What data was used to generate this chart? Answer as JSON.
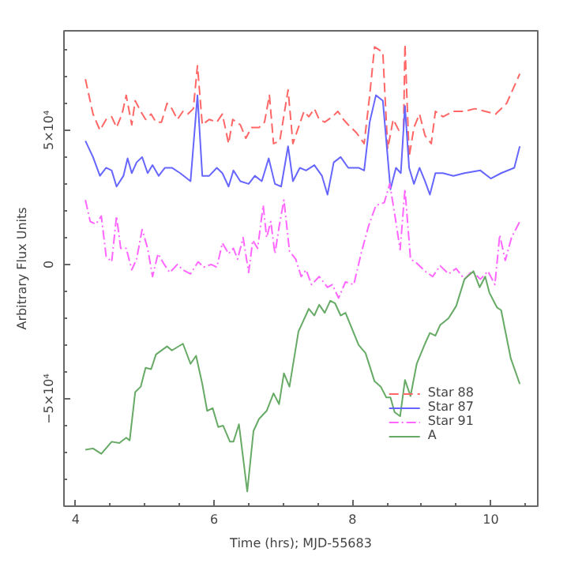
{
  "chart_data": {
    "type": "line",
    "xlabel": "Time (hrs); MJD-55683",
    "ylabel": "Arbitrary Flux Units",
    "xlim": [
      3.83,
      10.68
    ],
    "ylim": [
      -90000,
      87000
    ],
    "xticks": [
      4,
      6,
      8,
      10
    ],
    "yticks": [
      {
        "value": -50000,
        "label": "−5×10⁴"
      },
      0,
      {
        "value": 50000,
        "label": "5×10⁴"
      }
    ],
    "grid": false,
    "legend": "bottom right",
    "marker": "none",
    "series": [
      {
        "name": "Star 88",
        "color": "#ff6666",
        "line_style": "dashed",
        "x": [
          4.14,
          4.25,
          4.35,
          4.44,
          4.52,
          4.59,
          4.67,
          4.73,
          4.81,
          4.86,
          4.94,
          5.01,
          5.09,
          5.16,
          5.24,
          5.32,
          5.39,
          5.47,
          5.55,
          5.62,
          5.7,
          5.76,
          5.83,
          5.93,
          6.04,
          6.12,
          6.21,
          6.27,
          6.38,
          6.46,
          6.54,
          6.65,
          6.73,
          6.8,
          6.86,
          6.95,
          7.07,
          7.14,
          7.22,
          7.3,
          7.37,
          7.45,
          7.52,
          7.6,
          7.71,
          7.79,
          7.87,
          7.94,
          8.06,
          8.17,
          8.25,
          8.32,
          8.44,
          8.51,
          8.59,
          8.67,
          8.74,
          8.76,
          8.82,
          8.89,
          8.97,
          9.05,
          9.14,
          9.2,
          9.31,
          9.46,
          9.62,
          9.77,
          9.92,
          10.07,
          10.23,
          10.42
        ],
        "values": [
          69000,
          56000,
          50000,
          54000,
          55000,
          51000,
          56000,
          63000,
          52000,
          61000,
          57000,
          54000,
          56000,
          53000,
          53000,
          60000,
          58000,
          54000,
          57000,
          56000,
          58000,
          74000,
          52000,
          54000,
          53000,
          56000,
          45000,
          54000,
          52000,
          47000,
          51000,
          51000,
          53000,
          63000,
          45000,
          46000,
          65000,
          45000,
          51000,
          57000,
          55000,
          58000,
          54000,
          53000,
          55000,
          57000,
          54000,
          52000,
          49000,
          45000,
          63000,
          81000,
          79000,
          43000,
          54000,
          50000,
          51000,
          82000,
          40000,
          51000,
          56000,
          48000,
          45000,
          57000,
          55000,
          57000,
          57000,
          58000,
          57000,
          56000,
          60000,
          71000
        ]
      },
      {
        "name": "Star 87",
        "color": "#6666ff",
        "line_style": "solid",
        "x": [
          4.14,
          4.25,
          4.35,
          4.44,
          4.52,
          4.59,
          4.69,
          4.75,
          4.81,
          4.88,
          4.96,
          5.04,
          5.11,
          5.2,
          5.29,
          5.39,
          5.51,
          5.66,
          5.76,
          5.83,
          5.93,
          6.04,
          6.12,
          6.21,
          6.28,
          6.38,
          6.5,
          6.59,
          6.69,
          6.79,
          6.88,
          6.97,
          7.07,
          7.14,
          7.24,
          7.33,
          7.45,
          7.56,
          7.64,
          7.73,
          7.83,
          7.94,
          8.09,
          8.17,
          8.25,
          8.34,
          8.44,
          8.51,
          8.55,
          8.63,
          8.7,
          8.76,
          8.82,
          8.89,
          8.97,
          9.05,
          9.12,
          9.2,
          9.31,
          9.46,
          9.62,
          9.85,
          10.0,
          10.15,
          10.34,
          10.42
        ],
        "values": [
          46000,
          40000,
          33000,
          36000,
          35000,
          29000,
          33000,
          39500,
          34000,
          38000,
          40000,
          34000,
          37000,
          33000,
          36000,
          36000,
          34000,
          31000,
          63000,
          33000,
          33000,
          36000,
          34000,
          29000,
          35000,
          31000,
          30000,
          33000,
          31000,
          39500,
          30000,
          29000,
          44000,
          31000,
          36000,
          35000,
          37000,
          33000,
          26000,
          38000,
          40000,
          36000,
          36000,
          35000,
          53000,
          63000,
          61000,
          40000,
          28000,
          36000,
          34000,
          59000,
          36000,
          30000,
          36000,
          31000,
          26000,
          34000,
          34000,
          33000,
          34000,
          35000,
          32000,
          34000,
          36000,
          44000
        ]
      },
      {
        "name": "Star 91",
        "color": "#ff66ff",
        "line_style": "dotted",
        "x": [
          4.14,
          4.21,
          4.29,
          4.37,
          4.44,
          4.52,
          4.59,
          4.65,
          4.73,
          4.81,
          4.88,
          4.96,
          5.04,
          5.11,
          5.19,
          5.28,
          5.36,
          5.47,
          5.55,
          5.66,
          5.77,
          5.85,
          5.96,
          6.04,
          6.12,
          6.21,
          6.28,
          6.34,
          6.42,
          6.5,
          6.56,
          6.63,
          6.71,
          6.76,
          6.82,
          6.88,
          6.94,
          7.01,
          7.09,
          7.18,
          7.26,
          7.33,
          7.41,
          7.52,
          7.64,
          7.71,
          7.8,
          7.9,
          8.02,
          8.13,
          8.23,
          8.34,
          8.46,
          8.54,
          8.61,
          8.69,
          8.76,
          8.84,
          8.93,
          9.05,
          9.16,
          9.27,
          9.39,
          9.5,
          9.62,
          9.73,
          9.85,
          9.96,
          10.06,
          10.13,
          10.21,
          10.3,
          10.42
        ],
        "values": [
          24000,
          16000,
          15000,
          18000,
          3000,
          1000,
          18000,
          6000,
          6000,
          -2000,
          2000,
          13000,
          6000,
          -4500,
          4000,
          0,
          -3000,
          0,
          -2000,
          -3500,
          1000,
          -1000,
          0,
          -1000,
          8000,
          4000,
          6000,
          2000,
          10000,
          -3000,
          9000,
          6000,
          22000,
          10000,
          16000,
          4000,
          14000,
          24000,
          5000,
          2000,
          -4500,
          -2000,
          -7500,
          -4500,
          -8500,
          -7500,
          -12500,
          -6500,
          -7500,
          4500,
          14000,
          22000,
          23000,
          30000,
          19000,
          5500,
          28000,
          2000,
          500,
          -2500,
          -4500,
          -500,
          -3500,
          -1500,
          -5500,
          -2500,
          -5500,
          -2500,
          -7500,
          11000,
          1500,
          10000,
          16000
        ]
      },
      {
        "name": "A",
        "color": "#66aa66",
        "line_style": "solid",
        "x": [
          4.14,
          4.25,
          4.37,
          4.52,
          4.63,
          4.73,
          4.78,
          4.86,
          4.94,
          5.01,
          5.09,
          5.16,
          5.32,
          5.39,
          5.55,
          5.66,
          5.74,
          5.83,
          5.9,
          5.98,
          6.06,
          6.13,
          6.23,
          6.28,
          6.36,
          6.48,
          6.57,
          6.65,
          6.76,
          6.86,
          6.94,
          7.01,
          7.09,
          7.22,
          7.37,
          7.45,
          7.52,
          7.6,
          7.68,
          7.75,
          7.83,
          7.9,
          8.09,
          8.19,
          8.32,
          8.41,
          8.49,
          8.55,
          8.61,
          8.69,
          8.76,
          8.84,
          8.93,
          9.05,
          9.12,
          9.2,
          9.27,
          9.39,
          9.5,
          9.62,
          9.75,
          9.84,
          9.92,
          9.98,
          10.09,
          10.15,
          10.29,
          10.42
        ],
        "values": [
          -69000,
          -68500,
          -70500,
          -66000,
          -66500,
          -64500,
          -65500,
          -47500,
          -45500,
          -38500,
          -39000,
          -33500,
          -30500,
          -32000,
          -29500,
          -37000,
          -34000,
          -44500,
          -54500,
          -53500,
          -60500,
          -60000,
          -66000,
          -66000,
          -59500,
          -84500,
          -62000,
          -57500,
          -54500,
          -48000,
          -52000,
          -40500,
          -45500,
          -25000,
          -16500,
          -19000,
          -15000,
          -18000,
          -13500,
          -14500,
          -19000,
          -18000,
          -30000,
          -33000,
          -43500,
          -45500,
          -49500,
          -49500,
          -55000,
          -56500,
          -43000,
          -49000,
          -37000,
          -29500,
          -25500,
          -26500,
          -22500,
          -20000,
          -15500,
          -5500,
          -2500,
          -8500,
          -4500,
          -10500,
          -16000,
          -17000,
          -35000,
          -44500
        ]
      }
    ]
  }
}
